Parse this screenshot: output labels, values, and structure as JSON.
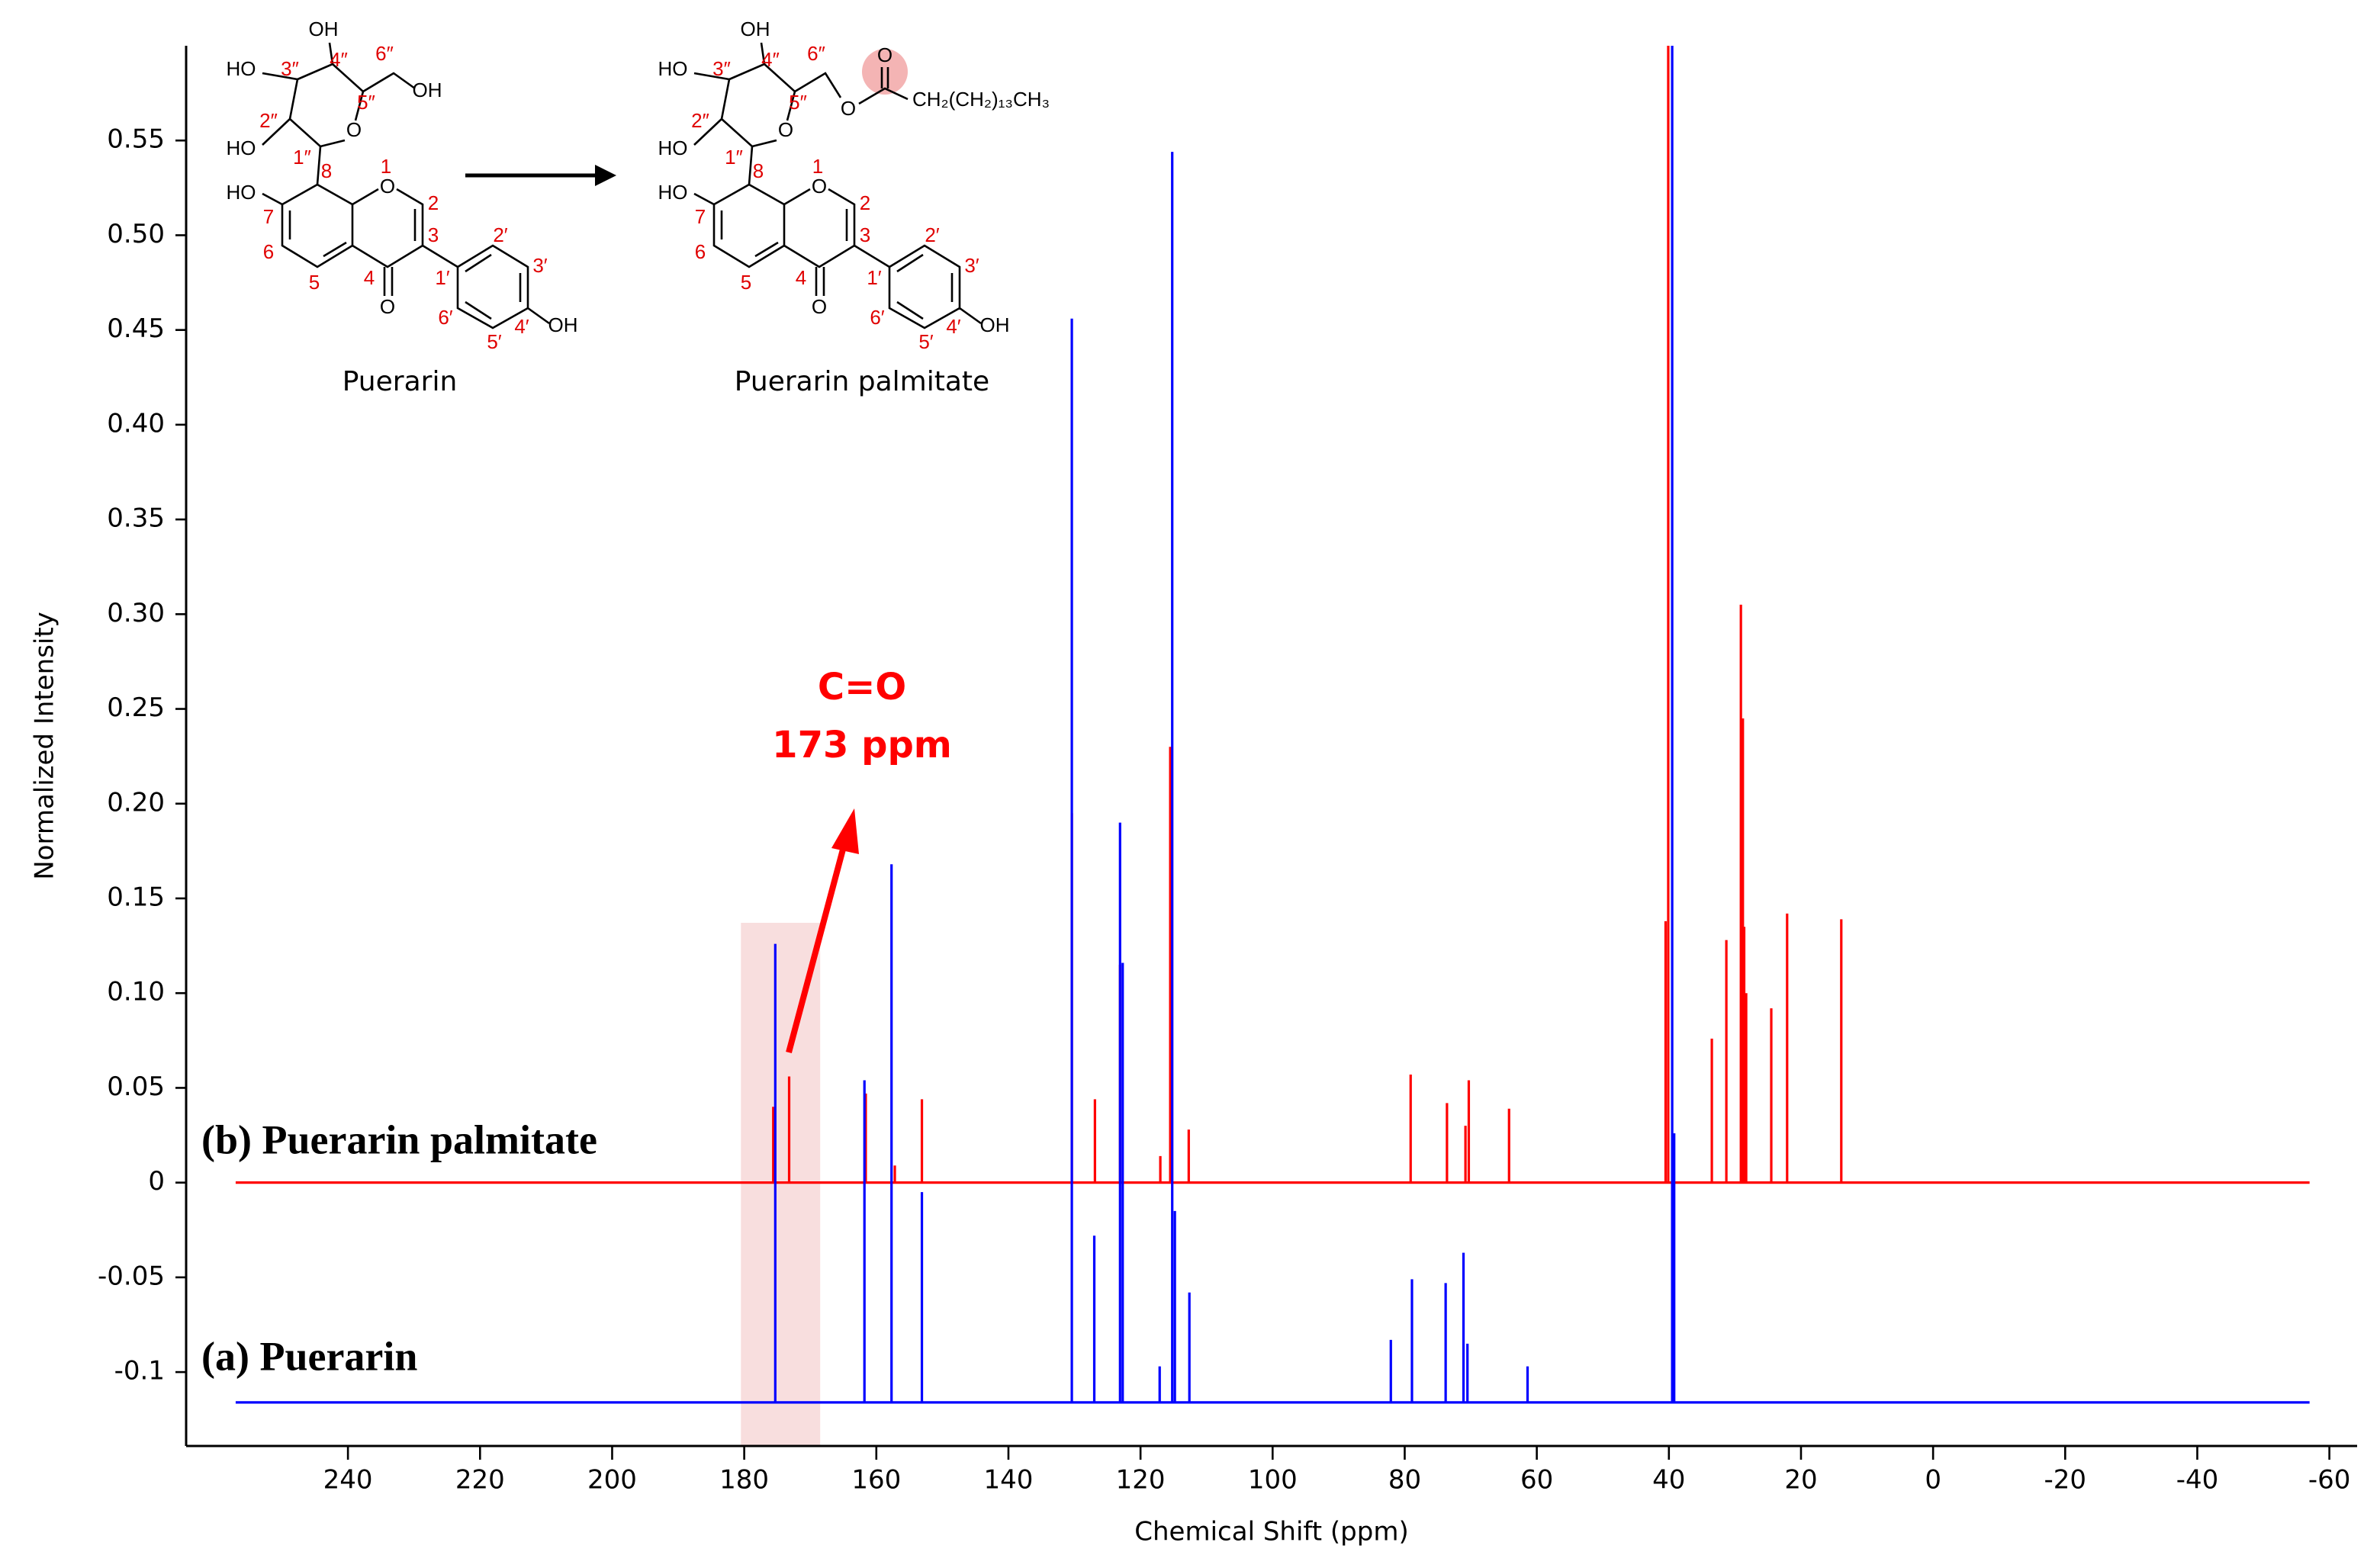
{
  "chart_data": {
    "type": "line",
    "x_label": "Chemical Shift (ppm)",
    "y_label": "Normalized Intensity",
    "xlim": [
      264.5,
      -64.2
    ],
    "ylim": [
      -0.139,
      0.6
    ],
    "xticks": [
      240,
      220,
      200,
      180,
      160,
      140,
      120,
      100,
      80,
      60,
      40,
      20,
      0,
      -20,
      -40,
      -60
    ],
    "yticks": [
      -0.1,
      -0.05,
      0,
      0.05,
      {
        "value": 0.1,
        "label": "0.10"
      },
      0.15,
      {
        "value": 0.2,
        "label": "0.20"
      },
      0.25,
      {
        "value": 0.3,
        "label": "0.30"
      },
      0.35,
      {
        "value": 0.4,
        "label": "0.40"
      },
      0.45,
      {
        "value": 0.5,
        "label": "0.50"
      },
      0.55
    ],
    "series": [
      {
        "name": "(b)   Puerarin palmitate",
        "color": "#ff0000",
        "x": [
          257,
          175.6,
          175.6,
          175.6,
          173.2,
          173.2,
          173.2,
          161.6,
          161.6,
          161.6,
          157.2,
          157.2,
          157.2,
          153.1,
          153.1,
          153.1,
          130.4,
          130.4,
          130.4,
          126.9,
          126.9,
          126.9,
          123.1,
          123.1,
          123.1,
          117,
          117,
          117,
          115.5,
          115.5,
          115.5,
          112.7,
          112.7,
          112.7,
          79.1,
          79.1,
          79.1,
          73.6,
          73.6,
          73.6,
          70.8,
          70.8,
          70.8,
          70.3,
          70.3,
          70.3,
          64.2,
          64.2,
          64.2,
          40.5,
          40.5,
          40.5,
          40.1,
          40.1,
          40.1,
          33.5,
          33.5,
          33.5,
          31.3,
          31.3,
          31.3,
          29.1,
          29.1,
          29.1,
          28.8,
          28.8,
          28.8,
          28.6,
          28.6,
          28.6,
          28.3,
          28.3,
          28.3,
          24.5,
          24.5,
          24.5,
          22.1,
          22.1,
          22.1,
          13.9,
          13.9,
          13.9,
          -57
        ],
        "values": [
          0,
          0,
          0.04,
          0,
          0,
          0.056,
          0,
          0,
          0.047,
          0,
          0,
          0.009,
          0,
          0,
          0.044,
          0,
          0,
          0.195,
          0,
          0,
          0.044,
          0,
          0,
          0.115,
          0,
          0,
          0.014,
          0,
          0,
          0.23,
          0,
          0,
          0.028,
          0,
          0,
          0.057,
          0,
          0,
          0.042,
          0,
          0,
          0.03,
          0,
          0,
          0.054,
          0,
          0,
          0.039,
          0,
          0,
          0.138,
          0,
          0,
          0.6,
          0,
          0,
          0.076,
          0,
          0,
          0.128,
          0,
          0,
          0.305,
          0,
          0,
          0.245,
          0,
          0,
          0.135,
          0,
          0,
          0.1,
          0,
          0,
          0.092,
          0,
          0,
          0.142,
          0,
          0,
          0.139,
          0,
          0
        ]
      },
      {
        "name": "(a)   Puerarin",
        "color": "#0000ff",
        "x": [
          257,
          175.3,
          175.3,
          175.3,
          161.8,
          161.8,
          161.8,
          157.7,
          157.7,
          157.7,
          153.1,
          153.1,
          153.1,
          130.4,
          130.4,
          130.4,
          127,
          127,
          127,
          123.1,
          123.1,
          123.1,
          122.7,
          122.7,
          122.7,
          117.1,
          117.1,
          117.1,
          115.2,
          115.2,
          115.2,
          114.8,
          114.8,
          114.8,
          112.6,
          112.6,
          112.6,
          82.1,
          82.1,
          82.1,
          78.9,
          78.9,
          78.9,
          73.8,
          73.8,
          73.8,
          71.1,
          71.1,
          71.1,
          70.5,
          70.5,
          70.5,
          61.4,
          61.4,
          61.4,
          39.5,
          39.5,
          39.5,
          39.2,
          39.2,
          39.2,
          -57
        ],
        "values": [
          -0.116,
          -0.116,
          0.126,
          -0.116,
          -0.116,
          0.054,
          -0.116,
          -0.116,
          0.168,
          -0.116,
          -0.116,
          -0.005,
          -0.116,
          -0.116,
          0.456,
          -0.116,
          -0.116,
          -0.028,
          -0.116,
          -0.116,
          0.19,
          -0.116,
          -0.116,
          0.116,
          -0.116,
          -0.116,
          -0.097,
          -0.116,
          -0.116,
          0.544,
          -0.116,
          -0.116,
          -0.015,
          -0.116,
          -0.116,
          -0.058,
          -0.116,
          -0.116,
          -0.083,
          -0.116,
          -0.116,
          -0.051,
          -0.116,
          -0.116,
          -0.053,
          -0.116,
          -0.116,
          -0.037,
          -0.116,
          -0.116,
          -0.085,
          -0.116,
          -0.116,
          -0.097,
          -0.116,
          -0.116,
          0.6,
          -0.116,
          -0.116,
          0.026,
          -0.116,
          -0.116
        ]
      }
    ],
    "annotations": [
      "C=O",
      "173 ppm"
    ],
    "annotation_color": "#ff0000",
    "structures": [
      {
        "name": "Puerarin",
        "atoms": [
          "HO",
          "OH",
          "OH",
          "HO",
          "O",
          "HO",
          "O",
          "O",
          "OH"
        ],
        "numbers": [
          "3″",
          "4″",
          "6″",
          "2″",
          "5″",
          "1″",
          "1",
          "8",
          "2",
          "7",
          "3",
          "2′",
          "6",
          "1′",
          "3′",
          "5",
          "4",
          "6′",
          "4′",
          "5′"
        ]
      },
      {
        "name": "Puerarin palmitate",
        "atoms": [
          "HO",
          "OH",
          "O",
          "O",
          "CH₂(CH₂)₁₃CH₃",
          "HO",
          "O",
          "HO",
          "O",
          "O",
          "OH"
        ],
        "numbers": [
          "3″",
          "4″",
          "6″",
          "2″",
          "5″",
          "1″",
          "1",
          "8",
          "2",
          "7",
          "3",
          "2′",
          "6",
          "1′",
          "3′",
          "5",
          "4",
          "6′",
          "4′",
          "5′"
        ]
      }
    ],
    "number_color": "#e00000"
  }
}
